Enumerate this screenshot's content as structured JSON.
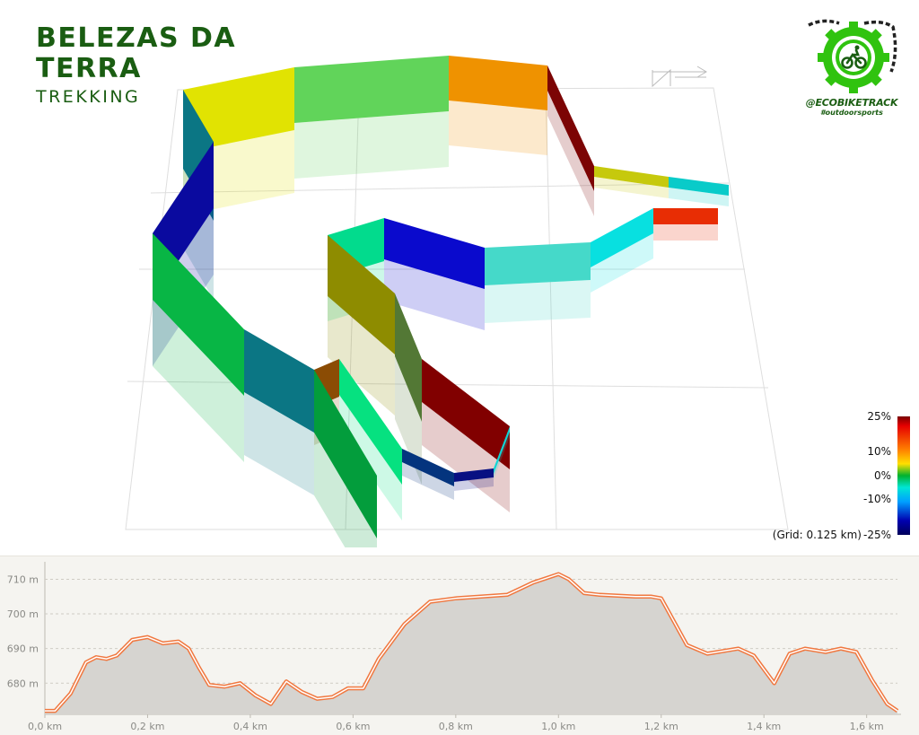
{
  "header": {
    "title_line1": "BELEZAS DA",
    "title_line2": "TERRA",
    "subtitle": "TREKKING"
  },
  "logo": {
    "icon": "cyclist-gear-chain-icon",
    "handle": "@ECOBIKETRACK",
    "tagline": "#outdoorsports"
  },
  "colors": {
    "title": "#1a5d12",
    "profile_line": "#f07840",
    "profile_fill": "#d6d4d0",
    "profile_bg": "#f5f4f0"
  },
  "legend": {
    "labels": [
      "25%",
      "10%",
      "0%",
      "-10%",
      "-25%"
    ],
    "grid_note": "(Grid: 0.125 km)"
  },
  "chart_data": [
    {
      "type": "3d-track",
      "title": "",
      "color_scale": "gradient (%)",
      "grid_spacing_km": 0.125,
      "segment_colors": [
        "#0b7684",
        "#e1e302",
        "#61d45a",
        "#ef9200",
        "#7c0404",
        "#c6c90d",
        "#09cbc9",
        "#e82d04",
        "#08e0e0",
        "#45d9c9",
        "#0a0acd",
        "#02db8d",
        "#8e8c00",
        "#537835",
        "#810000",
        "#0fd5d5",
        "#081082",
        "#04347e",
        "#06e180",
        "#8b4c04",
        "#039d3c",
        "#0a0a9f",
        "#08b645"
      ]
    },
    {
      "type": "area",
      "title": "",
      "xlabel": "",
      "ylabel": "",
      "x_unit": "km",
      "y_unit": "m",
      "xlim": [
        0,
        1.66
      ],
      "ylim": [
        671,
        714
      ],
      "x_ticks": [
        "0,0 km",
        "0,2 km",
        "0,4 km",
        "0,6 km",
        "0,8 km",
        "1,0 km",
        "1,2 km",
        "1,4 km",
        "1,6 km"
      ],
      "y_ticks": [
        "680 m",
        "690 m",
        "700 m",
        "710 m"
      ],
      "grid": true,
      "x": [
        0,
        0.02,
        0.05,
        0.08,
        0.1,
        0.12,
        0.14,
        0.17,
        0.2,
        0.23,
        0.26,
        0.28,
        0.3,
        0.32,
        0.35,
        0.38,
        0.41,
        0.44,
        0.47,
        0.5,
        0.53,
        0.56,
        0.59,
        0.62,
        0.65,
        0.7,
        0.75,
        0.8,
        0.9,
        0.95,
        1.0,
        1.02,
        1.05,
        1.08,
        1.15,
        1.18,
        1.2,
        1.25,
        1.29,
        1.31,
        1.35,
        1.38,
        1.42,
        1.45,
        1.48,
        1.52,
        1.55,
        1.58,
        1.61,
        1.64,
        1.66
      ],
      "y": [
        672,
        672,
        677,
        686,
        687.5,
        687,
        688,
        692.5,
        693.3,
        691.5,
        692,
        690,
        684.5,
        679.5,
        679,
        680,
        676.5,
        674,
        680.5,
        677.5,
        675.5,
        676,
        678.5,
        678.5,
        687,
        697,
        703.5,
        704.5,
        705.5,
        709,
        711.5,
        710,
        706,
        705.5,
        705,
        705,
        704.5,
        691,
        688.5,
        689,
        690,
        688,
        680,
        688.5,
        690,
        689,
        690,
        689,
        681,
        674,
        672
      ]
    }
  ]
}
